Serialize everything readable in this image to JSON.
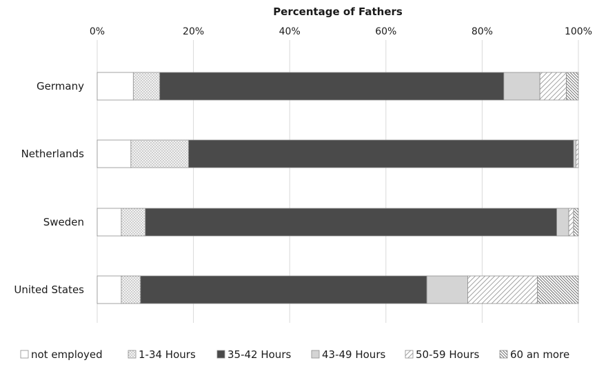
{
  "chart_data": {
    "type": "bar",
    "orientation": "horizontal",
    "stacked": "percent",
    "title": "",
    "xlabel": "Percentage of Fathers",
    "ylabel": "",
    "xaxis_position": "top",
    "xlim": [
      0,
      100
    ],
    "xticks": [
      0,
      20,
      40,
      60,
      80,
      100
    ],
    "xtick_labels": [
      "0%",
      "20%",
      "40%",
      "60%",
      "80%",
      "100%"
    ],
    "grid": true,
    "legend_position": "bottom",
    "categories": [
      "Germany",
      "Netherlands",
      "Sweden",
      "United States"
    ],
    "series": [
      {
        "name": "not employed",
        "pattern": "white",
        "values": [
          7.5,
          7,
          5,
          5
        ]
      },
      {
        "name": "1-34 Hours",
        "pattern": "dots",
        "values": [
          5.5,
          12,
          5,
          4
        ]
      },
      {
        "name": "35-42 Hours",
        "pattern": "solid-dark",
        "values": [
          71.5,
          80,
          85.5,
          59.5
        ]
      },
      {
        "name": "43-49 Hours",
        "pattern": "light-gray",
        "values": [
          7.5,
          0.5,
          2.5,
          8.5
        ]
      },
      {
        "name": "50-59 Hours",
        "pattern": "diagonal-light",
        "values": [
          5.5,
          0.5,
          1,
          14.5
        ]
      },
      {
        "name": "60 an more",
        "pattern": "diagonal-dense",
        "values": [
          2.5,
          0,
          1,
          8.5
        ]
      }
    ],
    "colors": {
      "outline": "#8c8c8c",
      "dark": "#4a4a4a",
      "light": "#d4d4d4",
      "grid": "#d9d9d9"
    }
  }
}
